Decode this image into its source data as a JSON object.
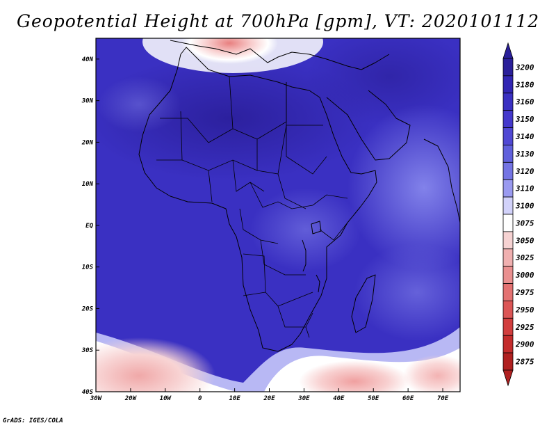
{
  "title": "Geopotential Height at 700hPa [gpm], VT: 2020101112",
  "credit": "GrADS: IGES/COLA",
  "map": {
    "lon_range": [
      -30,
      75
    ],
    "lat_range": [
      -40,
      45
    ],
    "y_ticks": [
      "40N",
      "30N",
      "20N",
      "10N",
      "EQ",
      "10S",
      "20S",
      "30S",
      "40S"
    ],
    "x_ticks": [
      "30W",
      "20W",
      "10W",
      "0",
      "10E",
      "20E",
      "30E",
      "40E",
      "50E",
      "60E",
      "70E"
    ],
    "fill_colors": {
      "deep_blue": "#3226b4",
      "mid_blue": "#4a45d0",
      "light_blue": "#7472e6",
      "white": "#ffffff",
      "pink": "#f4b4b4",
      "red": "#e06666"
    }
  },
  "colorbar": {
    "labels": [
      "3200",
      "3180",
      "3160",
      "3150",
      "3140",
      "3130",
      "3120",
      "3110",
      "3100",
      "3075",
      "3050",
      "3025",
      "3000",
      "2975",
      "2950",
      "2925",
      "2900",
      "2875"
    ],
    "colors": [
      "#2a1f9a",
      "#3226b4",
      "#3a30c2",
      "#4438cc",
      "#5048d4",
      "#6060dc",
      "#7474e4",
      "#9a9af0",
      "#d2d2fa",
      "#ffffff",
      "#f6d2d2",
      "#f0b0b0",
      "#ea9090",
      "#e47272",
      "#dc5656",
      "#d23e3e",
      "#c42c2c",
      "#b02020"
    ],
    "top_arrow_color": "#2a1f9a",
    "bottom_arrow_color": "#b02020"
  }
}
